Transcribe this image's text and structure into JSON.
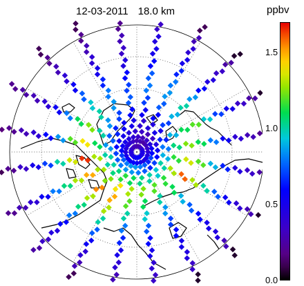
{
  "title": {
    "date": "12-03-2011",
    "altitude": "18.0 km"
  },
  "colorbar": {
    "unit": "ppbv",
    "min": 0.0,
    "max": 1.7,
    "ticks": [
      {
        "value": 0.0,
        "label": "0.0"
      },
      {
        "value": 0.5,
        "label": "0.5"
      },
      {
        "value": 1.0,
        "label": "1.0"
      },
      {
        "value": 1.5,
        "label": "1.5"
      }
    ]
  },
  "map": {
    "projection": "north-polar-stereographic",
    "graticule": "dotted",
    "tracks": [
      {
        "angle": -80,
        "values": [
          0.3,
          0.35,
          0.4,
          0.55,
          0.7,
          0.8,
          0.75,
          0.6,
          0.5,
          0.45,
          0.35,
          0.3
        ]
      },
      {
        "angle": -62,
        "values": [
          0.25,
          0.3,
          0.45,
          0.6,
          0.75,
          0.85,
          0.8,
          0.65,
          0.5,
          0.4,
          0.3,
          0.1
        ]
      },
      {
        "angle": -44,
        "values": [
          0.3,
          0.35,
          0.5,
          0.7,
          0.9,
          1.0,
          0.85,
          0.6,
          0.45,
          0.35,
          0.25,
          0.05
        ]
      },
      {
        "angle": -25,
        "values": [
          0.35,
          0.45,
          0.65,
          0.9,
          1.1,
          1.2,
          0.95,
          0.7,
          0.5,
          0.35,
          0.25,
          0.05
        ]
      },
      {
        "angle": -8,
        "values": [
          0.4,
          0.55,
          0.8,
          1.05,
          1.25,
          1.1,
          0.8,
          0.55,
          0.4,
          0.3,
          0.2,
          0.1
        ]
      },
      {
        "angle": 10,
        "values": [
          0.45,
          0.6,
          0.9,
          1.15,
          1.35,
          1.2,
          0.9,
          0.65,
          0.45,
          0.35,
          0.25,
          0.1
        ]
      },
      {
        "angle": 28,
        "values": [
          0.5,
          0.7,
          1.0,
          1.3,
          1.6,
          1.3,
          1.0,
          0.75,
          0.55,
          0.4,
          0.3,
          0.05
        ]
      },
      {
        "angle": 46,
        "values": [
          0.45,
          0.65,
          0.95,
          1.15,
          1.1,
          0.9,
          0.75,
          0.6,
          0.5,
          0.45,
          0.3,
          0.05
        ]
      },
      {
        "angle": 64,
        "values": [
          0.5,
          0.75,
          1.0,
          1.2,
          1.0,
          0.85,
          0.7,
          0.6,
          0.5,
          0.45,
          0.35,
          0.05
        ]
      },
      {
        "angle": 82,
        "values": [
          0.55,
          0.8,
          1.05,
          1.25,
          1.1,
          0.95,
          0.75,
          0.6,
          0.5,
          0.4,
          0.35,
          0.1
        ]
      },
      {
        "angle": 100,
        "values": [
          0.6,
          0.85,
          1.1,
          1.3,
          1.2,
          1.0,
          0.8,
          0.65,
          0.5,
          0.4,
          0.3,
          0.05
        ]
      },
      {
        "angle": 118,
        "values": [
          0.55,
          0.85,
          1.15,
          1.4,
          1.5,
          1.3,
          1.0,
          0.75,
          0.55,
          0.4,
          0.3,
          0.1
        ]
      },
      {
        "angle": 136,
        "values": [
          0.55,
          0.8,
          1.05,
          1.25,
          1.55,
          1.3,
          1.05,
          0.8,
          0.6,
          0.45,
          0.35,
          0.25
        ]
      },
      {
        "angle": 154,
        "values": [
          0.5,
          0.75,
          1.0,
          1.3,
          1.5,
          1.3,
          1.05,
          0.8,
          0.55,
          0.4,
          0.3,
          0.2
        ]
      },
      {
        "angle": 172,
        "values": [
          0.45,
          0.7,
          1.0,
          1.3,
          1.65,
          1.35,
          1.0,
          0.7,
          0.5,
          0.35,
          0.2,
          0.1
        ]
      },
      {
        "angle": 190,
        "values": [
          0.45,
          0.6,
          0.85,
          1.1,
          1.4,
          1.2,
          0.85,
          0.6,
          0.4,
          0.3,
          0.2,
          0.15
        ]
      },
      {
        "angle": 208,
        "values": [
          0.45,
          0.55,
          0.75,
          1.0,
          1.25,
          1.1,
          0.8,
          0.55,
          0.4,
          0.3,
          0.25,
          0.2
        ]
      },
      {
        "angle": 226,
        "values": [
          0.4,
          0.5,
          0.65,
          0.85,
          1.0,
          0.95,
          0.75,
          0.55,
          0.4,
          0.3,
          0.2,
          0.1
        ]
      },
      {
        "angle": 244,
        "values": [
          0.35,
          0.45,
          0.55,
          0.7,
          0.85,
          0.8,
          0.65,
          0.5,
          0.4,
          0.3,
          0.2,
          0.1
        ]
      },
      {
        "angle": 262,
        "values": [
          0.3,
          0.4,
          0.5,
          0.6,
          0.75,
          0.7,
          0.6,
          0.45,
          0.35,
          0.3,
          0.2,
          0.05
        ]
      }
    ]
  }
}
